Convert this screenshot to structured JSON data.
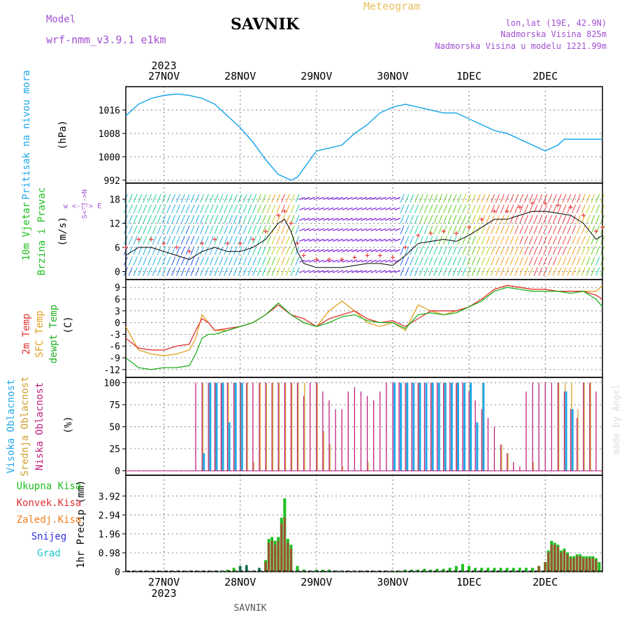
{
  "header": {
    "model_label": "Model",
    "model_name": "wrf-nmm_v3.9.1 e1km",
    "title": "SAVNIK",
    "subtitle": "Meteogram",
    "coords": "lon,lat (19E, 42.9N)",
    "height": "Nadmorska Visina 825m",
    "model_height": "Nadmorska Visina u modelu 1221.99m",
    "credit": "made by Angel",
    "footer": "SAVNIK"
  },
  "time_axis": {
    "year": "2023",
    "day_labels": [
      "27NOV",
      "28NOV",
      "29NOV",
      "30NOV",
      "1DEC",
      "2DEC"
    ],
    "day_hours": [
      12,
      36,
      60,
      84,
      108,
      132
    ],
    "total_hours": 150
  },
  "panels": {
    "pressure": {
      "labels": [
        "Pritisak na nivou mora",
        "(hPa)"
      ],
      "ylim": [
        991,
        1024
      ],
      "ticks": [
        "992",
        "1000",
        "1008",
        "1016"
      ],
      "color": "#20a8e8"
    },
    "wind": {
      "labels": [
        "10m Vjetar",
        "Brzina i Pravac",
        "(m/s)"
      ],
      "compass": "w <-|-> E",
      "compass_ns": "S<-|->N",
      "ylim": [
        -2,
        22
      ],
      "ticks": [
        "0",
        "6",
        "12",
        "18"
      ]
    },
    "temp": {
      "labels": [
        "2m Temp",
        "SFC Temp",
        "dewpt Temp",
        "(C)"
      ],
      "label_colors": [
        "#e03030",
        "#e0a020",
        "#20b020",
        "#000000"
      ],
      "ylim": [
        -14,
        11
      ],
      "ticks": [
        "-12",
        "-9",
        "-6",
        "-3",
        "0",
        "3",
        "6",
        "9"
      ]
    },
    "cloud": {
      "labels": [
        "Visoka Oblacnost",
        "Srednja Oblacnost",
        "Niska Oblacnost",
        "(%)"
      ],
      "label_colors": [
        "#20a8e8",
        "#d0a030",
        "#c02080",
        "#000000"
      ],
      "ylim": [
        -5,
        106
      ],
      "ticks": [
        "0",
        "25",
        "50",
        "75",
        "100"
      ]
    },
    "precip": {
      "labels": [
        "1hr Precip (mm)"
      ],
      "legend": [
        {
          "name": "Ukupna Kisa",
          "color": "#20c020"
        },
        {
          "name": "Konvek.Kisa",
          "color": "#e03030"
        },
        {
          "name": "Zaledj.Kisa",
          "color": "#f08020"
        },
        {
          "name": "Snijeg",
          "color": "#3030e0"
        },
        {
          "name": "Grad",
          "color": "#20c8c8"
        }
      ],
      "ylim": [
        0,
        5
      ],
      "ticks": [
        "0",
        "0.98",
        "1.96",
        "2.94",
        "3.92"
      ]
    }
  },
  "chart_data": {
    "type": "line",
    "x_unit": "hours from 27NOV 00Z",
    "pressure_series": {
      "name": "",
      "x": [
        0,
        4,
        8,
        12,
        16,
        20,
        24,
        28,
        32,
        36,
        40,
        44,
        48,
        52,
        54,
        56,
        60,
        64,
        68,
        72,
        76,
        80,
        84,
        88,
        92,
        96,
        100,
        104,
        108,
        112,
        116,
        120,
        124,
        128,
        130,
        132,
        134,
        136,
        138,
        140,
        142,
        144,
        148,
        150
      ],
      "values": [
        1014,
        1018,
        1020,
        1021,
        1021.5,
        1021,
        1020,
        1018,
        1014,
        1010,
        1005,
        999,
        994,
        992,
        993,
        996,
        1002,
        1003,
        1004,
        1008,
        1011,
        1015,
        1017,
        1018,
        1017,
        1016,
        1015,
        1015,
        1013,
        1011,
        1009,
        1008,
        1006,
        1004,
        1003,
        1002,
        1003,
        1004,
        1006,
        1006,
        1006,
        1006,
        1006,
        1006
      ]
    },
    "wind_speed_series": {
      "name": "",
      "x": [
        0,
        4,
        8,
        12,
        16,
        20,
        24,
        28,
        32,
        36,
        40,
        44,
        48,
        50,
        52,
        54,
        56,
        60,
        64,
        68,
        72,
        76,
        80,
        84,
        88,
        92,
        96,
        100,
        104,
        108,
        112,
        116,
        120,
        124,
        128,
        132,
        136,
        140,
        144,
        148,
        150
      ],
      "values": [
        4,
        6,
        6,
        5,
        4,
        3,
        5,
        6,
        5,
        5,
        6,
        8,
        12,
        13,
        10,
        5,
        2,
        1,
        1,
        1,
        1.5,
        2,
        2,
        1.5,
        4,
        7,
        7.5,
        8,
        7.5,
        9,
        11,
        13,
        13,
        14,
        15,
        15,
        14.5,
        14,
        12,
        8,
        9
      ]
    },
    "temp_2m": {
      "name": "",
      "x": [
        0,
        4,
        8,
        12,
        16,
        20,
        22,
        24,
        26,
        28,
        32,
        36,
        40,
        44,
        48,
        52,
        56,
        60,
        64,
        68,
        72,
        76,
        80,
        84,
        88,
        92,
        96,
        100,
        104,
        108,
        112,
        116,
        120,
        124,
        128,
        132,
        136,
        140,
        144,
        148,
        150
      ],
      "values": [
        -4,
        -6.5,
        -7,
        -7,
        -6,
        -5.5,
        -2,
        1,
        0,
        -2,
        -1.5,
        -1,
        0,
        2,
        4.5,
        2,
        1,
        -1,
        1,
        2,
        3,
        1,
        0,
        0.5,
        -1,
        1,
        3,
        3,
        3,
        4,
        6,
        8.5,
        9.5,
        9,
        8.5,
        8.5,
        8,
        8,
        8,
        7,
        6
      ]
    },
    "temp_sfc": {
      "name": "",
      "x": [
        0,
        4,
        8,
        12,
        16,
        20,
        22,
        24,
        26,
        28,
        32,
        36,
        40,
        44,
        48,
        52,
        56,
        60,
        64,
        68,
        72,
        76,
        80,
        84,
        88,
        92,
        96,
        100,
        104,
        108,
        112,
        116,
        120,
        124,
        128,
        132,
        136,
        140,
        144,
        148,
        150
      ],
      "values": [
        -1,
        -7,
        -8,
        -8.5,
        -8,
        -7,
        -4,
        2,
        0,
        -2,
        -2,
        -1,
        0,
        2,
        5,
        2,
        0,
        -1,
        3,
        5.5,
        3,
        0,
        -1,
        0,
        -2,
        4.5,
        3,
        2,
        3,
        4,
        6,
        8.5,
        9.5,
        9,
        8.5,
        8.5,
        8,
        8,
        8,
        8,
        9.5
      ]
    },
    "temp_dewpt": {
      "name": "",
      "x": [
        0,
        4,
        8,
        12,
        16,
        20,
        22,
        24,
        26,
        28,
        32,
        36,
        40,
        44,
        48,
        52,
        56,
        60,
        64,
        68,
        72,
        76,
        80,
        84,
        88,
        92,
        96,
        100,
        104,
        108,
        112,
        116,
        120,
        124,
        128,
        132,
        136,
        140,
        144,
        148,
        150
      ],
      "values": [
        -9,
        -11.5,
        -12,
        -11.5,
        -11.5,
        -11,
        -8,
        -4,
        -3,
        -3,
        -2,
        -1,
        0,
        2,
        5,
        2,
        0,
        -1,
        0,
        1.5,
        2,
        0.5,
        0,
        0,
        -1.5,
        2,
        2.5,
        2,
        2.5,
        4,
        5.5,
        8,
        9,
        8.5,
        8,
        8,
        8,
        7.5,
        8,
        6,
        4
      ]
    },
    "cloud_low_pct": {
      "name": "",
      "note_x": "x = hour index; value = cloud cover %",
      "x": [
        22,
        24,
        26,
        28,
        30,
        32,
        34,
        36,
        38,
        40,
        42,
        44,
        46,
        48,
        50,
        52,
        54,
        56,
        58,
        60,
        62,
        64,
        66,
        68,
        70,
        72,
        74,
        76,
        78,
        80,
        82,
        84,
        86,
        88,
        90,
        92,
        94,
        96,
        98,
        100,
        102,
        104,
        106,
        108,
        110,
        112,
        114,
        116,
        118,
        120,
        122,
        124,
        126,
        128,
        130,
        132,
        134,
        136,
        138,
        140,
        142,
        144,
        146,
        148
      ],
      "values": [
        100,
        100,
        100,
        100,
        100,
        100,
        100,
        100,
        100,
        100,
        100,
        100,
        100,
        100,
        100,
        100,
        100,
        85,
        100,
        100,
        90,
        80,
        70,
        70,
        90,
        95,
        90,
        85,
        80,
        90,
        100,
        100,
        100,
        100,
        100,
        100,
        100,
        100,
        100,
        100,
        100,
        100,
        100,
        90,
        80,
        70,
        60,
        50,
        30,
        20,
        10,
        5,
        90,
        100,
        100,
        100,
        100,
        100,
        90,
        70,
        60,
        100,
        100,
        90
      ]
    },
    "cloud_mid_pct": {
      "name": "",
      "x": [
        24,
        26,
        28,
        30,
        32,
        34,
        36,
        38,
        40,
        42,
        44,
        46,
        48,
        50,
        52,
        54,
        56,
        60,
        62,
        64,
        68,
        72,
        76,
        82,
        84,
        88,
        92,
        96,
        100,
        104,
        108,
        112,
        116,
        118,
        120,
        124,
        128,
        132,
        136,
        138,
        140,
        142,
        144,
        146
      ],
      "values": [
        100,
        100,
        100,
        100,
        100,
        100,
        100,
        100,
        10,
        100,
        100,
        100,
        100,
        100,
        100,
        100,
        100,
        100,
        45,
        30,
        5,
        0,
        10,
        0,
        0,
        100,
        100,
        100,
        100,
        100,
        100,
        100,
        0,
        30,
        20,
        0,
        10,
        0,
        100,
        100,
        100,
        70,
        100,
        100
      ]
    },
    "cloud_high_pct": {
      "name": "",
      "x": [
        24,
        26,
        28,
        30,
        32,
        34,
        36,
        84,
        86,
        88,
        90,
        92,
        94,
        96,
        98,
        100,
        102,
        104,
        106,
        108,
        110,
        112,
        138,
        140
      ],
      "values": [
        20,
        100,
        100,
        100,
        55,
        100,
        100,
        100,
        100,
        100,
        100,
        100,
        100,
        100,
        100,
        100,
        100,
        100,
        100,
        100,
        55,
        100,
        90,
        70
      ]
    },
    "precip_total_mm": {
      "name": "",
      "x": [
        30,
        32,
        34,
        36,
        38,
        40,
        42,
        44,
        45,
        46,
        47,
        48,
        49,
        50,
        51,
        52,
        54,
        56,
        60,
        62,
        64,
        68,
        72,
        84,
        86,
        88,
        90,
        92,
        94,
        96,
        98,
        100,
        102,
        104,
        106,
        108,
        110,
        112,
        114,
        116,
        118,
        120,
        122,
        124,
        126,
        128,
        130,
        132,
        133,
        134,
        135,
        136,
        137,
        138,
        139,
        140,
        141,
        142,
        143,
        144,
        145,
        146,
        147,
        148,
        149
      ],
      "values": [
        0.05,
        0.1,
        0.2,
        0.3,
        0.3,
        0.05,
        0.2,
        0.6,
        1.7,
        1.8,
        1.6,
        1.8,
        2.8,
        3.8,
        1.7,
        1.4,
        0.3,
        0.1,
        0.1,
        0.1,
        0.1,
        0.05,
        0.05,
        0.05,
        0.05,
        0.1,
        0.1,
        0.1,
        0.15,
        0.1,
        0.15,
        0.15,
        0.2,
        0.3,
        0.4,
        0.3,
        0.2,
        0.2,
        0.2,
        0.2,
        0.2,
        0.2,
        0.2,
        0.2,
        0.2,
        0.2,
        0.3,
        0.5,
        1.1,
        1.6,
        1.5,
        1.4,
        1.1,
        1.2,
        1.0,
        0.8,
        0.8,
        0.9,
        0.9,
        0.8,
        0.8,
        0.8,
        0.8,
        0.7,
        0.5
      ]
    },
    "precip_convective_mm": {
      "name": "",
      "x": [
        44,
        45,
        46,
        47,
        48,
        49,
        50,
        51,
        52,
        130,
        132,
        133,
        134,
        135,
        136,
        137,
        138,
        139,
        140,
        141,
        142,
        143,
        144,
        145,
        146,
        147,
        148
      ],
      "values": [
        0.5,
        1.5,
        1.6,
        1.4,
        1.6,
        2.5,
        2.8,
        1.5,
        1.2,
        0.3,
        0.5,
        1.0,
        1.4,
        1.4,
        1.3,
        1.0,
        1.1,
        0.9,
        0.7,
        0.7,
        0.8,
        0.8,
        0.7,
        0.7,
        0.7,
        0.7,
        0.6
      ]
    },
    "precip_snow_mm": {
      "name": "",
      "x": [
        36,
        38,
        40,
        42
      ],
      "values": [
        0.3,
        0.35,
        0.05,
        0.2
      ]
    }
  }
}
